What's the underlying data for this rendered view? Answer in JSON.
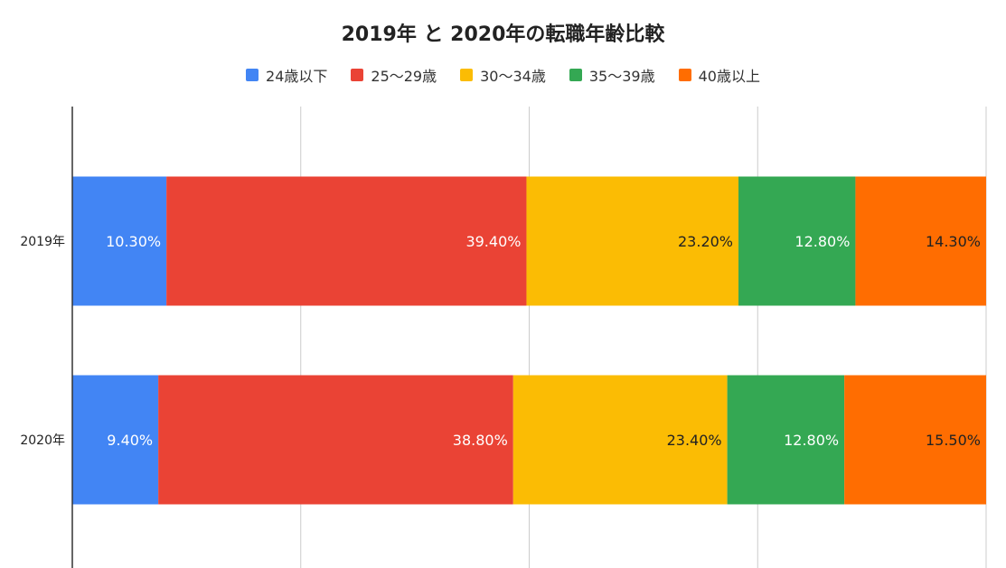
{
  "chart_data": {
    "type": "bar",
    "orientation": "horizontal",
    "stacked": true,
    "title": "2019年 と 2020年の転職年齢比較",
    "categories": [
      "2019年",
      "2020年"
    ],
    "series": [
      {
        "name": "24歳以下",
        "color": "#4285F4",
        "label_color": "#ffffff",
        "values": [
          10.3,
          9.4
        ],
        "labels": [
          "10.30%",
          "9.40%"
        ]
      },
      {
        "name": "25〜29歳",
        "color": "#EA4335",
        "label_color": "#ffffff",
        "values": [
          39.4,
          38.8
        ],
        "labels": [
          "39.40%",
          "38.80%"
        ]
      },
      {
        "name": "30〜34歳",
        "color": "#FBBC04",
        "label_color": "#222222",
        "values": [
          23.2,
          23.4
        ],
        "labels": [
          "23.20%",
          "23.40%"
        ]
      },
      {
        "name": "35〜39歳",
        "color": "#34A853",
        "label_color": "#ffffff",
        "values": [
          12.8,
          12.8
        ],
        "labels": [
          "12.80%",
          "12.80%"
        ]
      },
      {
        "name": "40歳以上",
        "color": "#FF6D01",
        "label_color": "#222222",
        "values": [
          14.3,
          15.5
        ],
        "labels": [
          "14.30%",
          "15.50%"
        ]
      }
    ],
    "xlim": [
      0,
      100
    ],
    "grid": true,
    "legend_position": "top"
  }
}
